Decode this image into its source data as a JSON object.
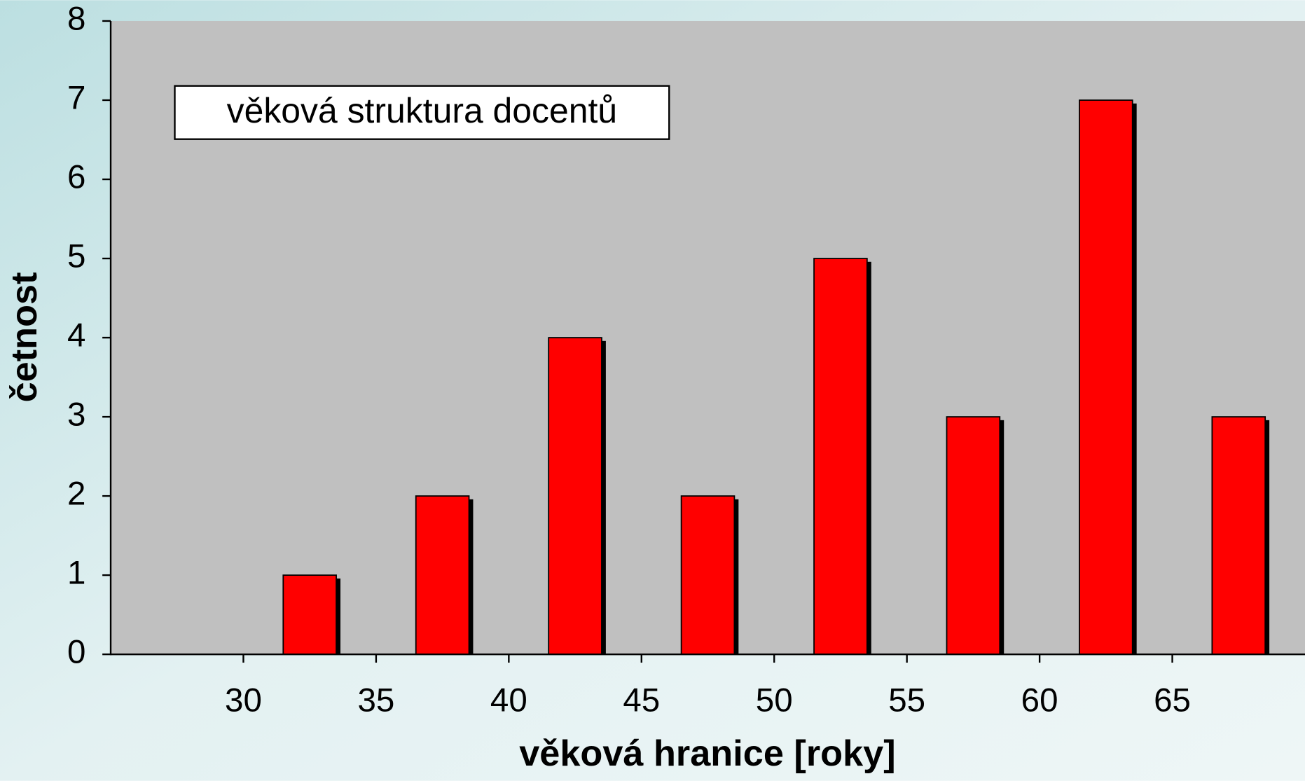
{
  "chart_data": {
    "type": "histogram",
    "annotation": "věková struktura docentů",
    "x_label": "věková hranice [roky]",
    "y_label": "četnost",
    "bins": [
      30,
      35,
      40,
      45,
      50,
      55,
      60,
      65,
      70
    ],
    "values": [
      1,
      2,
      4,
      2,
      5,
      3,
      7,
      3
    ],
    "color": "#ff0000",
    "xlim": [
      25,
      70
    ],
    "xticks": [
      30,
      35,
      40,
      45,
      50,
      55,
      60,
      65
    ],
    "ylim": [
      0,
      8
    ],
    "yticks": [
      0,
      1,
      2,
      3,
      4,
      5,
      6,
      7,
      8
    ]
  }
}
